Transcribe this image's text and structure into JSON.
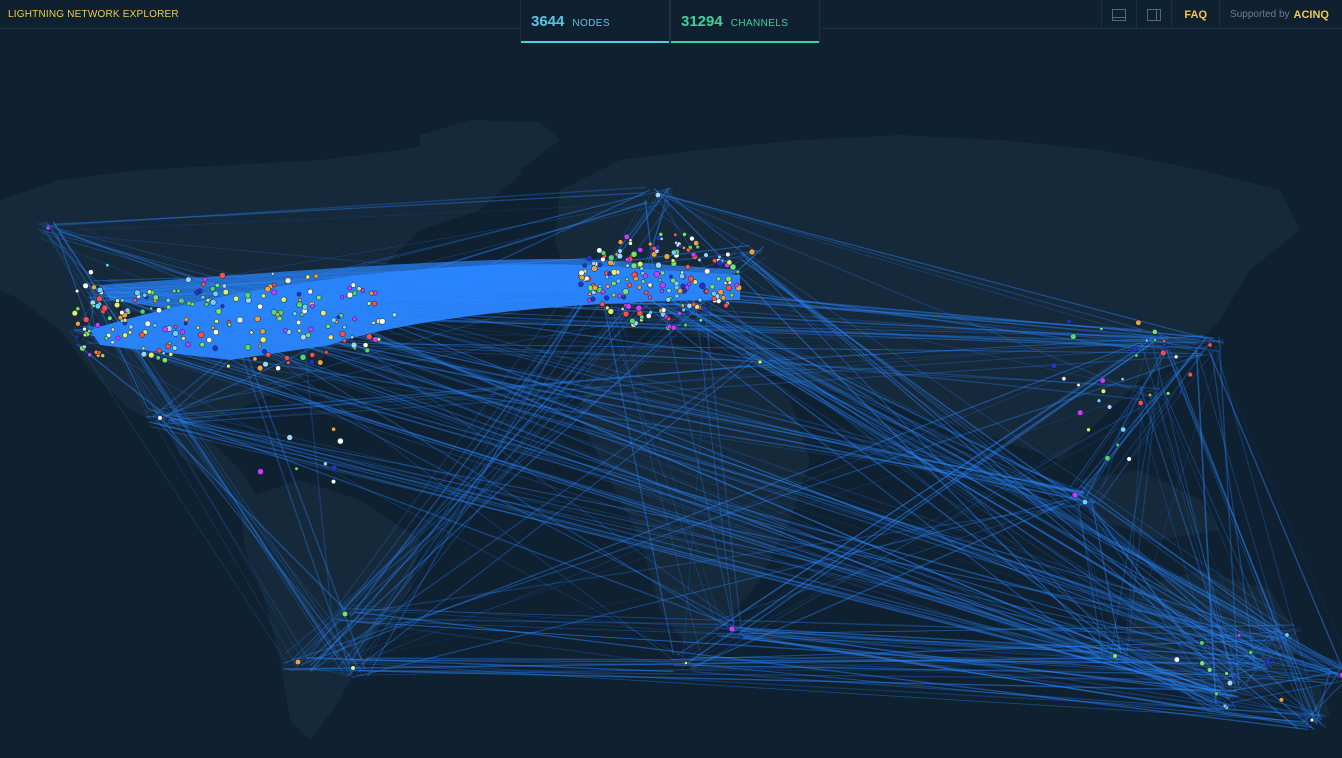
{
  "header": {
    "brand": "LIGHTNING NETWORK EXPLORER",
    "faq_label": "FAQ",
    "supported_by_label": "Supported by",
    "sponsor": "ACINQ"
  },
  "stats": {
    "nodes_count": "3644",
    "nodes_label": "NODES",
    "channels_count": "31294",
    "channels_label": "CHANNELS"
  },
  "toolbar": {
    "icons": [
      "bottom-panel-icon",
      "side-panel-icon"
    ]
  },
  "colors": {
    "background": "#0f2030",
    "land": "#15293b",
    "channel_line": "#2a86ff",
    "brand_yellow": "#f2c94c",
    "nodes_accent": "#58c8e0",
    "channels_accent": "#3fd39c"
  }
}
